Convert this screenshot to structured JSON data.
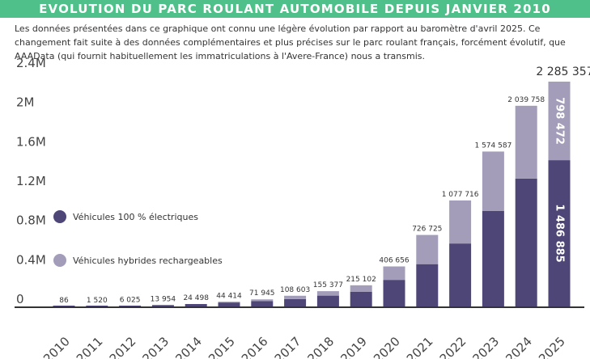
{
  "header": {
    "title": "EVOLUTION DU PARC ROULANT AUTOMOBILE DEPUIS JANVIER 2010",
    "intro": "Les données présentées dans ce graphique ont connu une légère évolution par rapport au baromètre d'avril 2025. Ce changement fait suite à des données complémentaires et plus précises sur le parc roulant français, forcément évolutif, que AAAData (qui fournit habituellement les immatriculations à l'Avere-France) nous a transmis."
  },
  "colors": {
    "banner": "#4fc08a",
    "bev": "#4e4677",
    "phev": "#a39db9",
    "axis": "#333333"
  },
  "chart_data": {
    "type": "bar",
    "stacked": true,
    "categories": [
      "2010",
      "2011",
      "2012",
      "2013",
      "2014",
      "2015",
      "2016",
      "2017",
      "2018",
      "2019",
      "2020",
      "2021",
      "2022",
      "2023",
      "2024",
      "2025"
    ],
    "series": [
      {
        "name": "Véhicules 100 % électriques",
        "color": "#4e4677",
        "values": [
          86,
          1520,
          6025,
          13954,
          24498,
          40000,
          55000,
          75000,
          110000,
          150000,
          270000,
          430000,
          640000,
          970000,
          1300000,
          1486885
        ]
      },
      {
        "name": "Véhicules hybrides rechargeables",
        "color": "#a39db9",
        "values": [
          0,
          0,
          0,
          0,
          0,
          4414,
          16945,
          33603,
          45377,
          65102,
          136656,
          296725,
          437716,
          604587,
          739758,
          798472
        ]
      }
    ],
    "totals": [
      "86",
      "1 520",
      "6 025",
      "13 954",
      "24 498",
      "44 414",
      "71 945",
      "108 603",
      "155 377",
      "215 102",
      "406 656",
      "726 725",
      "1 077 716",
      "1 574 587",
      "2 039 758",
      "2 285 357"
    ],
    "segment_labels_last": {
      "bev": "1 486 885",
      "phev": "798 472"
    },
    "y_ticks": [
      "0",
      "0.4M",
      "0.8M",
      "1.2M",
      "1.6M",
      "2M",
      "2.4M"
    ],
    "ylim": [
      0,
      2400000
    ],
    "legend_placement": "left-middle",
    "grid": false
  }
}
